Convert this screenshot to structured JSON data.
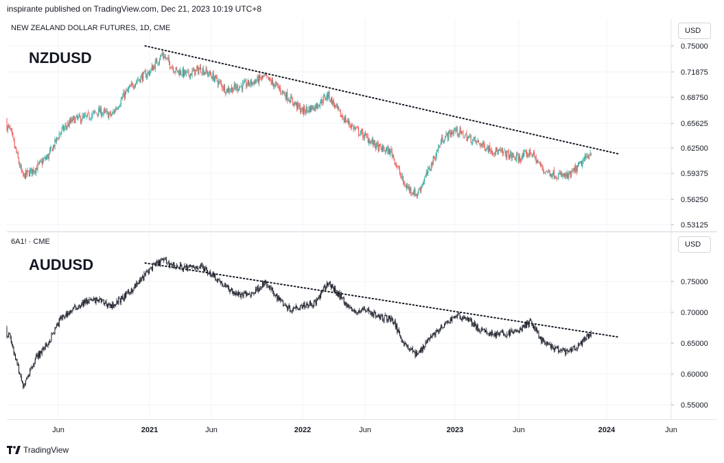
{
  "header": {
    "text": "inspirante published on TradingView.com, Dec 21, 2023 10:19 UTC+8"
  },
  "footer": {
    "brand": "TradingView",
    "logo_icon": "tradingview-logo-icon"
  },
  "chart_data": [
    {
      "type": "candlestick",
      "title": "NEW ZEALAND DOLLAR FUTURES, 1D, CME",
      "label": "NZDUSD",
      "currency_button": "USD",
      "up_color": "#26a69a",
      "down_color": "#ef5350",
      "ylim": [
        0.51,
        0.765
      ],
      "y_ticks": [
        "0.75000",
        "0.71875",
        "0.68750",
        "0.65625",
        "0.62500",
        "0.59375",
        "0.56250",
        "0.53125"
      ],
      "x_ticks": [
        {
          "label": "Jun",
          "bold": false
        },
        {
          "label": "2021",
          "bold": true
        },
        {
          "label": "Jun",
          "bold": false
        },
        {
          "label": "2022",
          "bold": true
        },
        {
          "label": "Jun",
          "bold": false
        },
        {
          "label": "2023",
          "bold": true
        },
        {
          "label": "Jun",
          "bold": false
        },
        {
          "label": "2024",
          "bold": true
        },
        {
          "label": "Jun",
          "bold": false
        }
      ],
      "dates": [
        "2020-01",
        "2020-02",
        "2020-03",
        "2020-04",
        "2020-05",
        "2020-06",
        "2020-07",
        "2020-08",
        "2020-09",
        "2020-10",
        "2020-11",
        "2020-12",
        "2021-01",
        "2021-02",
        "2021-03",
        "2021-04",
        "2021-05",
        "2021-06",
        "2021-07",
        "2021-08",
        "2021-09",
        "2021-10",
        "2021-11",
        "2021-12",
        "2022-01",
        "2022-02",
        "2022-03",
        "2022-04",
        "2022-05",
        "2022-06",
        "2022-07",
        "2022-08",
        "2022-09",
        "2022-10",
        "2022-11",
        "2022-12",
        "2023-01",
        "2023-02",
        "2023-03",
        "2023-04",
        "2023-05",
        "2023-06",
        "2023-07",
        "2023-08",
        "2023-09",
        "2023-10",
        "2023-11",
        "2023-12"
      ],
      "values": [
        0.66,
        0.648,
        0.59,
        0.6,
        0.615,
        0.645,
        0.66,
        0.662,
        0.67,
        0.665,
        0.69,
        0.708,
        0.718,
        0.74,
        0.72,
        0.715,
        0.722,
        0.712,
        0.696,
        0.7,
        0.705,
        0.712,
        0.7,
        0.685,
        0.67,
        0.676,
        0.69,
        0.665,
        0.65,
        0.638,
        0.625,
        0.62,
        0.58,
        0.568,
        0.6,
        0.636,
        0.647,
        0.638,
        0.63,
        0.622,
        0.618,
        0.612,
        0.62,
        0.598,
        0.592,
        0.59,
        0.606,
        0.625
      ],
      "trendline": {
        "start": [
          "2020-12",
          0.75
        ],
        "end": [
          "2024-02",
          0.618
        ]
      }
    },
    {
      "type": "candlestick",
      "title": "6A1! · CME",
      "label": "AUDUSD",
      "currency_button": "USD",
      "up_color": "#131722",
      "down_color": "#131722",
      "ylim": [
        0.535,
        0.8
      ],
      "y_ticks": [
        "0.75000",
        "0.70000",
        "0.65000",
        "0.60000",
        "0.55000"
      ],
      "x_ticks": [
        {
          "label": "Jun",
          "bold": false
        },
        {
          "label": "2021",
          "bold": true
        },
        {
          "label": "Jun",
          "bold": false
        },
        {
          "label": "2022",
          "bold": true
        },
        {
          "label": "Jun",
          "bold": false
        },
        {
          "label": "2023",
          "bold": true
        },
        {
          "label": "Jun",
          "bold": false
        },
        {
          "label": "2024",
          "bold": true
        },
        {
          "label": "Jun",
          "bold": false
        }
      ],
      "dates": [
        "2020-01",
        "2020-02",
        "2020-03",
        "2020-04",
        "2020-05",
        "2020-06",
        "2020-07",
        "2020-08",
        "2020-09",
        "2020-10",
        "2020-11",
        "2020-12",
        "2021-01",
        "2021-02",
        "2021-03",
        "2021-04",
        "2021-05",
        "2021-06",
        "2021-07",
        "2021-08",
        "2021-09",
        "2021-10",
        "2021-11",
        "2021-12",
        "2022-01",
        "2022-02",
        "2022-03",
        "2022-04",
        "2022-05",
        "2022-06",
        "2022-07",
        "2022-08",
        "2022-09",
        "2022-10",
        "2022-11",
        "2022-12",
        "2023-01",
        "2023-02",
        "2023-03",
        "2023-04",
        "2023-05",
        "2023-06",
        "2023-07",
        "2023-08",
        "2023-09",
        "2023-10",
        "2023-11",
        "2023-12"
      ],
      "values": [
        0.675,
        0.66,
        0.58,
        0.625,
        0.65,
        0.69,
        0.705,
        0.718,
        0.72,
        0.71,
        0.725,
        0.745,
        0.77,
        0.785,
        0.775,
        0.772,
        0.775,
        0.76,
        0.74,
        0.728,
        0.73,
        0.748,
        0.725,
        0.705,
        0.712,
        0.715,
        0.748,
        0.725,
        0.7,
        0.705,
        0.692,
        0.69,
        0.65,
        0.63,
        0.66,
        0.675,
        0.695,
        0.69,
        0.67,
        0.665,
        0.665,
        0.67,
        0.685,
        0.65,
        0.64,
        0.635,
        0.65,
        0.67
      ],
      "trendline": {
        "start": [
          "2020-12",
          0.78
        ],
        "end": [
          "2024-02",
          0.66
        ]
      }
    }
  ]
}
